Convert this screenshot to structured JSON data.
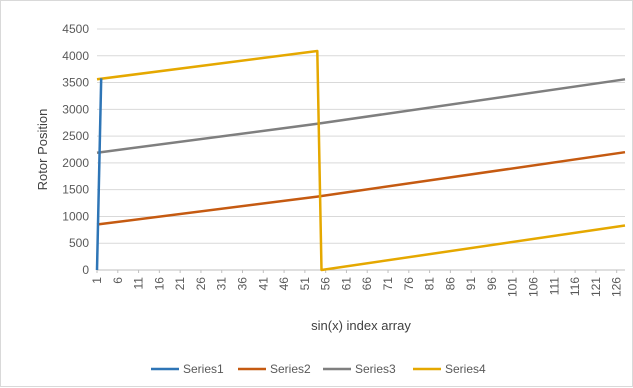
{
  "chart_data": {
    "type": "line",
    "title": "",
    "xlabel": "sin(x) index array",
    "ylabel": "Rotor Position",
    "ylim": [
      0,
      4500
    ],
    "yticks": [
      0,
      500,
      1000,
      1500,
      2000,
      2500,
      3000,
      3500,
      4000,
      4500
    ],
    "xlim": [
      1,
      128
    ],
    "xticks": [
      1,
      6,
      11,
      16,
      21,
      26,
      31,
      36,
      41,
      46,
      51,
      56,
      61,
      66,
      71,
      76,
      81,
      86,
      91,
      96,
      101,
      106,
      111,
      116,
      121,
      126
    ],
    "grid": "horizontal",
    "legend_position": "bottom",
    "series": [
      {
        "name": "Series1",
        "color": "#2e75b6",
        "points": [
          [
            1,
            0
          ],
          [
            2,
            3580
          ]
        ]
      },
      {
        "name": "Series2",
        "color": "#c55a11",
        "points": [
          [
            1,
            850
          ],
          [
            54,
            1370
          ],
          [
            128,
            2200
          ]
        ]
      },
      {
        "name": "Series3",
        "color": "#7f7f7f",
        "points": [
          [
            1,
            2190
          ],
          [
            54,
            2730
          ],
          [
            128,
            3560
          ]
        ]
      },
      {
        "name": "Series4",
        "color": "#e5a800",
        "points": [
          [
            1,
            3560
          ],
          [
            54,
            4090
          ],
          [
            55,
            0
          ],
          [
            128,
            830
          ]
        ]
      }
    ]
  }
}
